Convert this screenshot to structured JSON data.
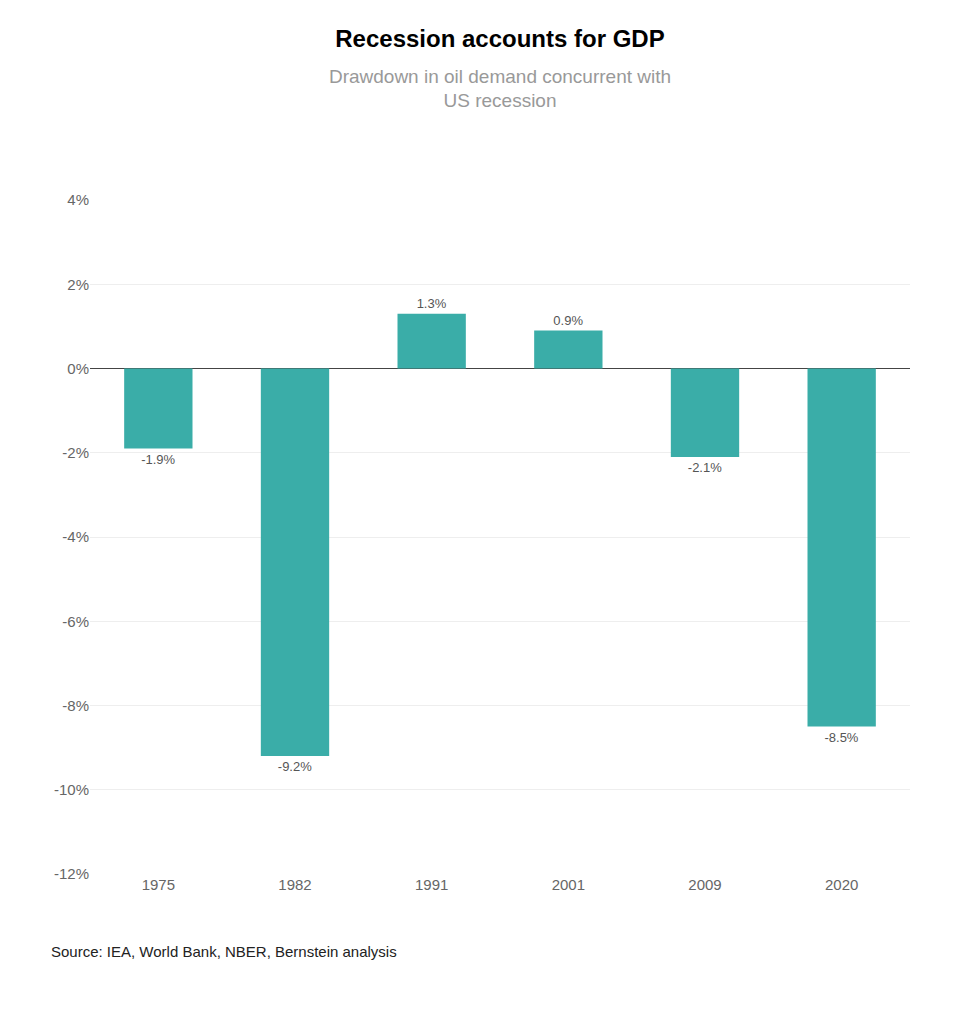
{
  "chart_data": {
    "type": "bar",
    "title": "Recession accounts for GDP",
    "subtitle": "Drawdown in oil demand concurrent with\nUS recession",
    "source": "Source: IEA, World Bank, NBER, Bernstein analysis",
    "categories": [
      "1975",
      "1982",
      "1991",
      "2001",
      "2009",
      "2020"
    ],
    "values": [
      -1.9,
      -9.2,
      1.3,
      0.9,
      -2.1,
      -8.5
    ],
    "value_labels": [
      "-1.9%",
      "-9.2%",
      "1.3%",
      "0.9%",
      "-2.1%",
      "-8.5%"
    ],
    "data_labels": true,
    "color": "#3aada8",
    "ylim": [
      -12,
      4
    ],
    "yticks": [
      {
        "value": 4,
        "label": "4%"
      },
      {
        "value": 2,
        "label": "2%"
      },
      {
        "value": 0,
        "label": "0%"
      },
      {
        "value": -2,
        "label": "-2%"
      },
      {
        "value": -4,
        "label": "-4%"
      },
      {
        "value": -6,
        "label": "-6%"
      },
      {
        "value": -8,
        "label": "-8%"
      },
      {
        "value": -10,
        "label": "-10%"
      },
      {
        "value": -12,
        "label": "-12%"
      }
    ],
    "grid": true
  }
}
